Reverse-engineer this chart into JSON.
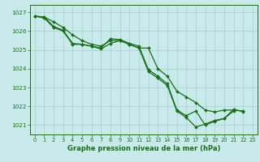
{
  "title": "Graphe pression niveau de la mer (hPa)",
  "bg_color": "#c8eaea",
  "grid_color": "#a8cece",
  "line_color": "#1a6e1a",
  "xlim": [
    -0.5,
    23.5
  ],
  "ylim": [
    1020.5,
    1027.4
  ],
  "yticks": [
    1021,
    1022,
    1023,
    1024,
    1025,
    1026,
    1027
  ],
  "xticks": [
    0,
    1,
    2,
    3,
    4,
    5,
    6,
    7,
    8,
    9,
    10,
    11,
    12,
    13,
    14,
    15,
    16,
    17,
    18,
    19,
    20,
    21,
    22,
    23
  ],
  "series": [
    [
      1026.8,
      1026.75,
      1026.5,
      1026.2,
      1025.8,
      1025.5,
      1025.3,
      1025.2,
      1025.5,
      1025.5,
      1025.3,
      1025.1,
      1025.1,
      1024.0,
      1023.6,
      1022.8,
      1022.5,
      1022.2,
      1021.8,
      1021.7,
      1021.8,
      1021.8,
      1021.75,
      null
    ],
    [
      1026.8,
      1026.75,
      1026.25,
      1026.05,
      1025.35,
      1025.3,
      1025.2,
      1025.1,
      1025.6,
      1025.55,
      1025.35,
      1025.2,
      1023.95,
      1023.6,
      1023.2,
      1021.8,
      1021.5,
      1021.75,
      1021.0,
      1021.2,
      1021.35,
      1021.85,
      1021.7,
      null
    ],
    [
      1026.8,
      1026.7,
      1026.2,
      1026.0,
      1025.3,
      1025.3,
      1025.2,
      1025.05,
      1025.35,
      1025.5,
      1025.3,
      1025.1,
      1023.85,
      1023.5,
      1023.1,
      1021.75,
      1021.4,
      1020.9,
      1021.05,
      1021.25,
      1021.35,
      1021.75,
      null,
      null
    ]
  ]
}
